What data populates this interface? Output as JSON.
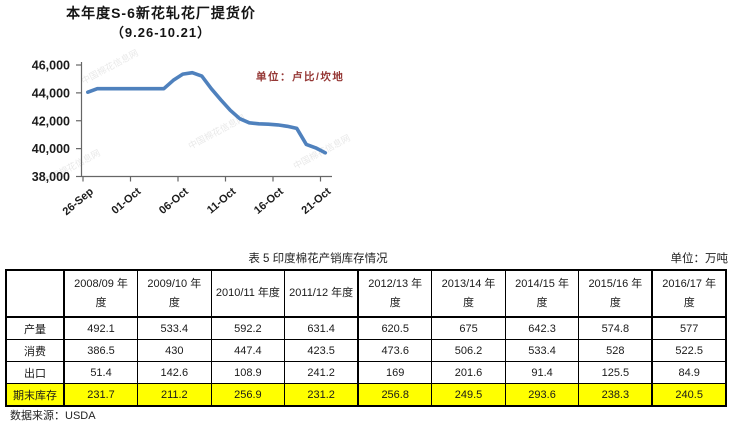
{
  "chart": {
    "title": "本年度S-6新花轧花厂提货价",
    "subtitle": "（9.26-10.21）",
    "unit_label": "单位：卢比/坎地",
    "unit_label_color": "#953735",
    "line_color": "#4f81bd",
    "axis_color": "#666666",
    "watermark_text": "中国棉花信息网"
  },
  "chart_data": {
    "type": "line",
    "title": "本年度S-6新花轧花厂提货价（9.26-10.21）",
    "ylabel": "卢比/坎地",
    "ylim": [
      38000,
      46000
    ],
    "grid": false,
    "legend": "none",
    "x": [
      "26-Sep",
      "27-Sep",
      "28-Sep",
      "29-Sep",
      "30-Sep",
      "01-Oct",
      "02-Oct",
      "03-Oct",
      "04-Oct",
      "05-Oct",
      "06-Oct",
      "07-Oct",
      "08-Oct",
      "09-Oct",
      "10-Oct",
      "11-Oct",
      "12-Oct",
      "13-Oct",
      "14-Oct",
      "15-Oct",
      "16-Oct",
      "17-Oct",
      "18-Oct",
      "19-Oct",
      "20-Oct",
      "21-Oct"
    ],
    "values": [
      44050,
      44300,
      44300,
      44300,
      44300,
      44300,
      44300,
      44300,
      44300,
      44900,
      45350,
      45450,
      45200,
      44300,
      43500,
      42750,
      42150,
      41850,
      41780,
      41750,
      41700,
      41600,
      41450,
      40300,
      40050,
      39700
    ],
    "x_tick_labels": [
      "26-Sep",
      "01-Oct",
      "06-Oct",
      "11-Oct",
      "16-Oct",
      "21-Oct"
    ],
    "x_tick_days": [
      0,
      5,
      10,
      15,
      20,
      25
    ],
    "y_ticks": [
      38000,
      40000,
      42000,
      44000,
      46000
    ],
    "y_tick_labels": [
      "38,000",
      "40,000",
      "42,000",
      "44,000",
      "46,000"
    ]
  },
  "table": {
    "caption": "表 5  印度棉花产销库存情况",
    "unit": "单位：万吨",
    "col_headers": [
      "2008/09 年度",
      "2009/10 年度",
      "2010/11 年度",
      "2011/12 年度",
      "2012/13 年度",
      "2013/14 年度",
      "2014/15 年度",
      "2015/16 年度",
      "2016/17 年度"
    ],
    "rows": [
      {
        "label": "产量",
        "values": [
          "492.1",
          "533.4",
          "592.2",
          "631.4",
          "620.5",
          "675",
          "642.3",
          "574.8",
          "577"
        ],
        "highlight": false
      },
      {
        "label": "消费",
        "values": [
          "386.5",
          "430",
          "447.4",
          "423.5",
          "473.6",
          "506.2",
          "533.4",
          "528",
          "522.5"
        ],
        "highlight": false
      },
      {
        "label": "出口",
        "values": [
          "51.4",
          "142.6",
          "108.9",
          "241.2",
          "169",
          "201.6",
          "91.4",
          "125.5",
          "84.9"
        ],
        "highlight": false
      },
      {
        "label": "期末库存",
        "values": [
          "231.7",
          "211.2",
          "256.9",
          "231.2",
          "256.8",
          "249.5",
          "293.6",
          "238.3",
          "240.5"
        ],
        "highlight": true
      }
    ],
    "highlight_color": "#ffff00"
  },
  "footer": {
    "source": "数据来源：USDA"
  }
}
